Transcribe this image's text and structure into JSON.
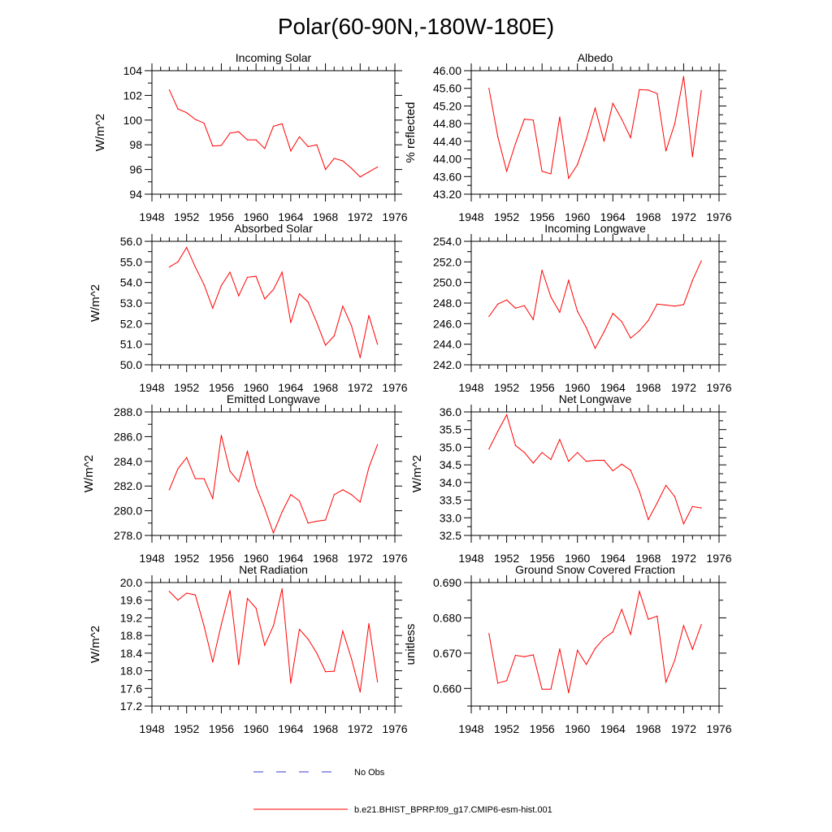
{
  "title": "Polar(60-90N,-180W-180E)",
  "colors": {
    "series": "#ff0000",
    "no_obs": "#3a3acc",
    "axis": "#000000"
  },
  "legend": {
    "no_obs_label": "No Obs",
    "series_label": "b.e21.BHIST_BPRP.f09_g17.CMIP6-esm-hist.001"
  },
  "chart_data": [
    {
      "type": "line",
      "title": "Incoming Solar",
      "ylabel": "W/m^2",
      "xlim": [
        1948,
        1976
      ],
      "ylim": [
        94,
        104
      ],
      "yticks": [
        94,
        96,
        98,
        100,
        102,
        104
      ],
      "ytick_labels": [
        "94",
        "96",
        "98",
        "100",
        "102",
        "104"
      ],
      "xticks": [
        1948,
        1952,
        1956,
        1960,
        1964,
        1968,
        1972,
        1976
      ],
      "x": [
        1950,
        1951,
        1952,
        1953,
        1954,
        1955,
        1956,
        1957,
        1958,
        1959,
        1960,
        1961,
        1962,
        1963,
        1964,
        1965,
        1966,
        1967,
        1968,
        1969,
        1970,
        1971,
        1972,
        1973,
        1974
      ],
      "values": [
        102.45,
        100.9,
        100.6,
        100.05,
        99.75,
        97.9,
        97.95,
        98.95,
        99.05,
        98.4,
        98.4,
        97.7,
        99.5,
        99.7,
        97.5,
        98.65,
        97.85,
        98.0,
        96.0,
        96.9,
        96.7,
        96.1,
        95.4,
        95.8,
        96.2
      ]
    },
    {
      "type": "line",
      "title": "Albedo",
      "ylabel": "% reflected",
      "xlim": [
        1948,
        1976
      ],
      "ylim": [
        43.2,
        46.0
      ],
      "yticks": [
        43.2,
        43.6,
        44.0,
        44.4,
        44.8,
        45.2,
        45.6,
        46.0
      ],
      "ytick_labels": [
        "43.20",
        "43.60",
        "44.00",
        "44.40",
        "44.80",
        "45.20",
        "45.60",
        "46.00"
      ],
      "xticks": [
        1948,
        1952,
        1956,
        1960,
        1964,
        1968,
        1972,
        1976
      ],
      "x": [
        1950,
        1951,
        1952,
        1953,
        1954,
        1955,
        1956,
        1957,
        1958,
        1959,
        1960,
        1961,
        1962,
        1963,
        1964,
        1965,
        1966,
        1967,
        1968,
        1969,
        1970,
        1971,
        1972,
        1973,
        1974
      ],
      "values": [
        45.6,
        44.5,
        43.72,
        44.35,
        44.9,
        44.88,
        43.72,
        43.66,
        44.95,
        43.56,
        43.87,
        44.45,
        45.15,
        44.4,
        45.26,
        44.9,
        44.48,
        45.57,
        45.56,
        45.48,
        44.18,
        44.8,
        45.87,
        44.05,
        45.55
      ]
    },
    {
      "type": "line",
      "title": "Absorbed Solar",
      "ylabel": "W/m^2",
      "xlim": [
        1948,
        1976
      ],
      "ylim": [
        50.0,
        56.0
      ],
      "yticks": [
        50,
        51,
        52,
        53,
        54,
        55,
        56
      ],
      "ytick_labels": [
        "50.0",
        "51.0",
        "52.0",
        "53.0",
        "54.0",
        "55.0",
        "56.0"
      ],
      "xticks": [
        1948,
        1952,
        1956,
        1960,
        1964,
        1968,
        1972,
        1976
      ],
      "x": [
        1950,
        1951,
        1952,
        1953,
        1954,
        1955,
        1956,
        1957,
        1958,
        1959,
        1960,
        1961,
        1962,
        1963,
        1964,
        1965,
        1966,
        1967,
        1968,
        1969,
        1970,
        1971,
        1972,
        1973,
        1974
      ],
      "values": [
        54.75,
        55.0,
        55.7,
        54.75,
        53.9,
        52.75,
        53.85,
        54.5,
        53.35,
        54.25,
        54.3,
        53.2,
        53.65,
        54.5,
        52.05,
        53.45,
        53.05,
        52.05,
        50.95,
        51.4,
        52.85,
        51.9,
        50.35,
        52.4,
        51.0
      ]
    },
    {
      "type": "line",
      "title": "Incoming Longwave",
      "ylabel": "",
      "xlim": [
        1948,
        1976
      ],
      "ylim": [
        242.0,
        254.0
      ],
      "yticks": [
        242,
        244,
        246,
        248,
        250,
        252,
        254
      ],
      "ytick_labels": [
        "242.0",
        "244.0",
        "246.0",
        "248.0",
        "250.0",
        "252.0",
        "254.0"
      ],
      "xticks": [
        1948,
        1952,
        1956,
        1960,
        1964,
        1968,
        1972,
        1976
      ],
      "x": [
        1950,
        1951,
        1952,
        1953,
        1954,
        1955,
        1956,
        1957,
        1958,
        1959,
        1960,
        1961,
        1962,
        1963,
        1964,
        1965,
        1966,
        1967,
        1968,
        1969,
        1970,
        1971,
        1972,
        1973,
        1974
      ],
      "values": [
        246.7,
        247.9,
        248.3,
        247.5,
        247.75,
        246.4,
        251.2,
        248.6,
        247.1,
        250.2,
        247.2,
        245.6,
        243.6,
        245.2,
        247.0,
        246.2,
        244.6,
        245.3,
        246.3,
        247.9,
        247.8,
        247.7,
        247.85,
        250.2,
        252.1
      ]
    },
    {
      "type": "line",
      "title": "Emitted Longwave",
      "ylabel": "W/m^2",
      "xlim": [
        1948,
        1976
      ],
      "ylim": [
        278.0,
        288.0
      ],
      "yticks": [
        278,
        280,
        282,
        284,
        286,
        288
      ],
      "ytick_labels": [
        "278.0",
        "280.0",
        "282.0",
        "284.0",
        "286.0",
        "288.0"
      ],
      "xticks": [
        1948,
        1952,
        1956,
        1960,
        1964,
        1968,
        1972,
        1976
      ],
      "x": [
        1950,
        1951,
        1952,
        1953,
        1954,
        1955,
        1956,
        1957,
        1958,
        1959,
        1960,
        1961,
        1962,
        1963,
        1964,
        1965,
        1966,
        1967,
        1968,
        1969,
        1970,
        1971,
        1972,
        1973,
        1974
      ],
      "values": [
        281.7,
        283.4,
        284.3,
        282.6,
        282.6,
        281.0,
        286.1,
        283.2,
        282.35,
        284.8,
        282.0,
        280.2,
        278.2,
        279.9,
        281.3,
        280.8,
        279.0,
        279.15,
        279.25,
        281.3,
        281.7,
        281.3,
        280.7,
        283.5,
        285.35
      ]
    },
    {
      "type": "line",
      "title": "Net Longwave",
      "ylabel": "W/m^2",
      "xlim": [
        1948,
        1976
      ],
      "ylim": [
        32.5,
        36.0
      ],
      "yticks": [
        32.5,
        33.0,
        33.5,
        34.0,
        34.5,
        35.0,
        35.5,
        36.0
      ],
      "ytick_labels": [
        "32.5",
        "33.0",
        "33.5",
        "34.0",
        "34.5",
        "35.0",
        "35.5",
        "36.0"
      ],
      "xticks": [
        1948,
        1952,
        1956,
        1960,
        1964,
        1968,
        1972,
        1976
      ],
      "x": [
        1950,
        1951,
        1952,
        1953,
        1954,
        1955,
        1956,
        1957,
        1958,
        1959,
        1960,
        1961,
        1962,
        1963,
        1964,
        1965,
        1966,
        1967,
        1968,
        1969,
        1970,
        1971,
        1972,
        1973,
        1974
      ],
      "values": [
        34.95,
        35.45,
        35.92,
        35.05,
        34.85,
        34.55,
        34.85,
        34.65,
        35.22,
        34.6,
        34.85,
        34.6,
        34.63,
        34.63,
        34.33,
        34.52,
        34.35,
        33.75,
        32.95,
        33.42,
        33.92,
        33.6,
        32.83,
        33.32,
        33.28
      ]
    },
    {
      "type": "line",
      "title": "Net Radiation",
      "ylabel": "W/m^2",
      "xlim": [
        1948,
        1976
      ],
      "ylim": [
        17.2,
        20.0
      ],
      "yticks": [
        17.2,
        17.6,
        18.0,
        18.4,
        18.8,
        19.2,
        19.6,
        20.0
      ],
      "ytick_labels": [
        "17.2",
        "17.6",
        "18.0",
        "18.4",
        "18.8",
        "19.2",
        "19.6",
        "20.0"
      ],
      "xticks": [
        1948,
        1952,
        1956,
        1960,
        1964,
        1968,
        1972,
        1976
      ],
      "x": [
        1950,
        1951,
        1952,
        1953,
        1954,
        1955,
        1956,
        1957,
        1958,
        1959,
        1960,
        1961,
        1962,
        1963,
        1964,
        1965,
        1966,
        1967,
        1968,
        1969,
        1970,
        1971,
        1972,
        1973,
        1974
      ],
      "values": [
        19.8,
        19.6,
        19.76,
        19.72,
        19.02,
        18.2,
        19.05,
        19.82,
        18.14,
        19.64,
        19.42,
        18.58,
        19.02,
        19.86,
        17.72,
        18.94,
        18.72,
        18.4,
        17.98,
        17.99,
        18.9,
        18.27,
        17.52,
        19.07,
        17.75
      ]
    },
    {
      "type": "line",
      "title": "Ground Snow Covered Fraction",
      "ylabel": "unitless",
      "xlim": [
        1948,
        1976
      ],
      "ylim": [
        0.655,
        0.69
      ],
      "yticks": [
        0.66,
        0.67,
        0.68,
        0.69
      ],
      "ytick_labels": [
        "0.660",
        "0.670",
        "0.680",
        "0.690"
      ],
      "xticks": [
        1948,
        1952,
        1956,
        1960,
        1964,
        1968,
        1972,
        1976
      ],
      "x": [
        1950,
        1951,
        1952,
        1953,
        1954,
        1955,
        1956,
        1957,
        1958,
        1959,
        1960,
        1961,
        1962,
        1963,
        1964,
        1965,
        1966,
        1967,
        1968,
        1969,
        1970,
        1971,
        1972,
        1973,
        1974
      ],
      "values": [
        0.6755,
        0.6615,
        0.6622,
        0.6694,
        0.669,
        0.6695,
        0.6598,
        0.6598,
        0.6712,
        0.6588,
        0.6708,
        0.6668,
        0.6713,
        0.6742,
        0.676,
        0.6824,
        0.6753,
        0.6875,
        0.6796,
        0.6805,
        0.6618,
        0.668,
        0.6778,
        0.6711,
        0.6781
      ]
    }
  ]
}
